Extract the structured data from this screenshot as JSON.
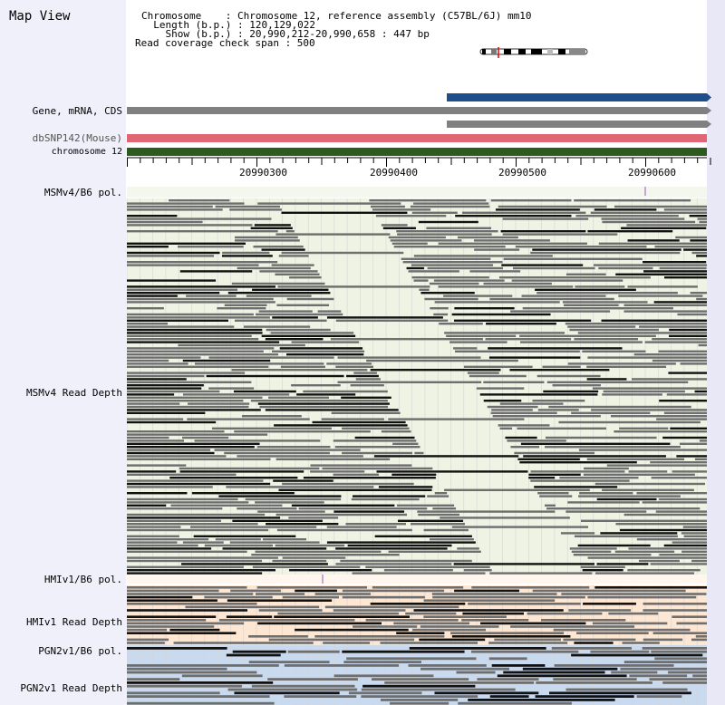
{
  "header": {
    "title": "Map View",
    "info_lines": [
      "Chromosome    : Chromosome 12, reference assembly (C57BL/6J) mm10",
      "  Length (b.p.) : 120,129,022",
      "    Show (b.p.) : 20,990,212-20,990,658 : 447 bp",
      "Read coverage check span : 500"
    ]
  },
  "tracks": {
    "gene": "Gene, mRNA, CDS",
    "dbsnp": "dbSNP142(Mouse)",
    "chromosome": "chromosome 12",
    "msm_pol": "MSMv4/B6 pol.",
    "msm_depth": "MSMv4 Read Depth",
    "hmi_pol": "HMIv1/B6 pol.",
    "hmi_depth": "HMIv1 Read Depth",
    "pgn_pol": "PGN2v1/B6 pol.",
    "pgn_depth": "PGN2v1 Read Depth"
  },
  "axis": {
    "ticks": [
      "20990300",
      "20990400",
      "20990500",
      "20990600"
    ]
  },
  "colors": {
    "gene_blue": "#1f4e8c",
    "gene_gray": "#808080",
    "snp_pink": "#e06673",
    "chromosome_green": "#2d5a1e",
    "msm_bg": "#eef3e4",
    "hmi_bg": "#fde6d2",
    "pgn_bg": "#c9d9ee"
  }
}
